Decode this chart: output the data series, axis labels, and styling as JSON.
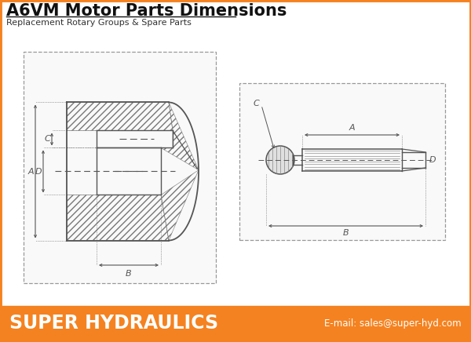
{
  "title": "A6VM Motor Parts Dimensions",
  "subtitle": "Replacement Rotary Groups & Spare Parts",
  "footer_text": "SUPER HYDRAULICS",
  "footer_email": "E-mail: sales@super-hyd.com",
  "footer_bg": "#F58220",
  "footer_text_color": "#FFFFFF",
  "bg_color": "#FFFFFF",
  "drawing_color": "#555555",
  "dim_color": "#444444"
}
